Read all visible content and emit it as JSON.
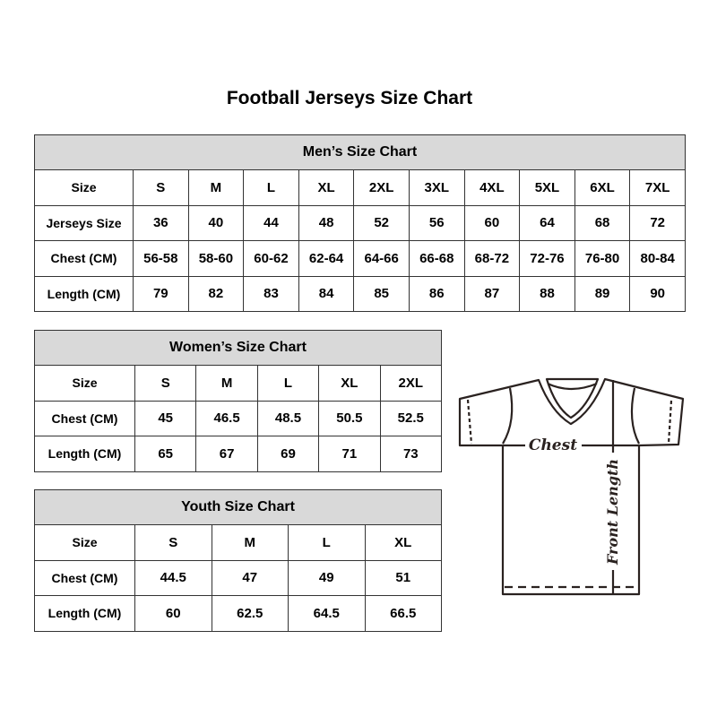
{
  "title": "Football Jerseys Size Chart",
  "mens": {
    "header": "Men’s Size Chart",
    "rows": [
      [
        "Size",
        "S",
        "M",
        "L",
        "XL",
        "2XL",
        "3XL",
        "4XL",
        "5XL",
        "6XL",
        "7XL"
      ],
      [
        "Jerseys Size",
        "36",
        "40",
        "44",
        "48",
        "52",
        "56",
        "60",
        "64",
        "68",
        "72"
      ],
      [
        "Chest (CM)",
        "56-58",
        "58-60",
        "60-62",
        "62-64",
        "64-66",
        "66-68",
        "68-72",
        "72-76",
        "76-80",
        "80-84"
      ],
      [
        "Length (CM)",
        "79",
        "82",
        "83",
        "84",
        "85",
        "86",
        "87",
        "88",
        "89",
        "90"
      ]
    ]
  },
  "womens": {
    "header": "Women’s Size Chart",
    "rows": [
      [
        "Size",
        "S",
        "M",
        "L",
        "XL",
        "2XL"
      ],
      [
        "Chest (CM)",
        "45",
        "46.5",
        "48.5",
        "50.5",
        "52.5"
      ],
      [
        "Length (CM)",
        "65",
        "67",
        "69",
        "71",
        "73"
      ]
    ]
  },
  "youth": {
    "header": "Youth Size Chart",
    "rows": [
      [
        "Size",
        "S",
        "M",
        "L",
        "XL"
      ],
      [
        "Chest (CM)",
        "44.5",
        "47",
        "49",
        "51"
      ],
      [
        "Length (CM)",
        "60",
        "62.5",
        "64.5",
        "66.5"
      ]
    ]
  },
  "diagram": {
    "chest_label": "Chest",
    "length_label": "Front Length"
  },
  "colors": {
    "header_bg": "#d9d9d9",
    "border": "#333333",
    "outline": "#2a2220"
  }
}
